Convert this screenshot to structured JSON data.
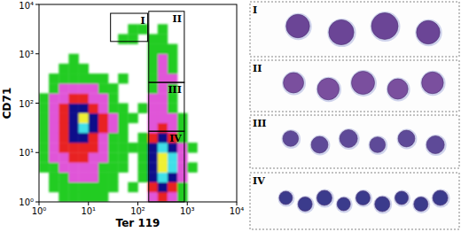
{
  "chart_data": {
    "type": "heatmap",
    "log": true,
    "xlabel": "Ter 119",
    "ylabel": "CD71",
    "xlim": [
      1,
      10000
    ],
    "ylim": [
      1,
      10000
    ],
    "xticks": [
      {
        "value": 1,
        "label": "10⁰"
      },
      {
        "value": 10,
        "label": "10¹"
      },
      {
        "value": 100,
        "label": "10²"
      },
      {
        "value": 1000,
        "label": "10³"
      },
      {
        "value": 10000,
        "label": "10⁴"
      }
    ],
    "yticks": [
      {
        "value": 1,
        "label": "10⁰"
      },
      {
        "value": 10,
        "label": "10¹"
      },
      {
        "value": 100,
        "label": "10²"
      },
      {
        "value": 1000,
        "label": "10³"
      },
      {
        "value": 10000,
        "label": "10⁴"
      }
    ],
    "colors": [
      "#22cc22",
      "#e055d8",
      "#e82020",
      "#10108a",
      "#40e0e8",
      "#f0f030"
    ],
    "x_bins": [
      1,
      1.585,
      2.512,
      3.981,
      6.31,
      10,
      15.85,
      25.12,
      39.81,
      63.1,
      100,
      158.5,
      251.2,
      398.1,
      631,
      1000,
      1585,
      2512,
      3981,
      6310,
      10000
    ],
    "y_bins": [
      1,
      1.585,
      2.512,
      3.981,
      6.31,
      10,
      15.85,
      25.12,
      39.81,
      63.1,
      100,
      158.5,
      251.2,
      398.1,
      631,
      1000,
      1585,
      2512,
      3981,
      6310,
      10000
    ],
    "cells": [
      [
        0,
        0,
        1,
        1,
        1,
        1,
        1,
        0,
        0,
        0,
        0,
        2,
        3,
        2,
        1,
        0,
        0,
        0,
        0,
        0
      ],
      [
        0,
        1,
        1,
        1,
        1,
        1,
        1,
        1,
        0,
        1,
        0,
        3,
        4,
        3,
        1,
        0,
        0,
        0,
        0,
        0
      ],
      [
        0,
        1,
        1,
        2,
        2,
        2,
        1,
        1,
        0,
        0,
        1,
        4,
        5,
        4,
        2,
        0,
        0,
        0,
        0,
        0
      ],
      [
        1,
        1,
        2,
        2,
        2,
        2,
        1,
        1,
        1,
        0,
        1,
        4,
        6,
        5,
        2,
        1,
        0,
        0,
        0,
        0
      ],
      [
        1,
        2,
        2,
        3,
        3,
        2,
        2,
        1,
        1,
        0,
        1,
        4,
        6,
        5,
        2,
        0,
        0,
        0,
        0,
        0
      ],
      [
        1,
        2,
        3,
        3,
        3,
        3,
        2,
        1,
        1,
        1,
        1,
        4,
        5,
        4,
        2,
        1,
        0,
        0,
        0,
        0
      ],
      [
        1,
        2,
        3,
        4,
        4,
        3,
        2,
        1,
        1,
        0,
        1,
        3,
        4,
        3,
        1,
        0,
        0,
        0,
        0,
        0
      ],
      [
        1,
        2,
        3,
        4,
        5,
        4,
        3,
        2,
        1,
        0,
        0,
        2,
        3,
        2,
        1,
        0,
        0,
        0,
        0,
        0
      ],
      [
        1,
        2,
        3,
        4,
        6,
        4,
        3,
        2,
        1,
        1,
        0,
        2,
        2,
        2,
        1,
        0,
        0,
        0,
        0,
        0
      ],
      [
        1,
        2,
        3,
        4,
        4,
        3,
        2,
        1,
        1,
        0,
        1,
        2,
        2,
        1,
        0,
        0,
        0,
        0,
        0,
        0
      ],
      [
        1,
        2,
        2,
        3,
        3,
        2,
        2,
        1,
        0,
        0,
        0,
        2,
        2,
        1,
        0,
        0,
        0,
        0,
        0,
        0
      ],
      [
        0,
        1,
        2,
        2,
        2,
        2,
        1,
        1,
        0,
        0,
        0,
        1,
        2,
        1,
        0,
        0,
        0,
        0,
        0,
        0
      ],
      [
        0,
        1,
        1,
        1,
        1,
        1,
        1,
        0,
        1,
        0,
        0,
        1,
        2,
        2,
        0,
        0,
        0,
        0,
        0,
        0
      ],
      [
        0,
        0,
        1,
        1,
        1,
        0,
        0,
        0,
        0,
        0,
        0,
        1,
        2,
        1,
        0,
        0,
        0,
        0,
        0,
        0
      ],
      [
        0,
        0,
        0,
        1,
        0,
        0,
        0,
        0,
        0,
        0,
        0,
        1,
        2,
        1,
        0,
        0,
        0,
        0,
        0,
        0
      ],
      [
        0,
        0,
        0,
        0,
        0,
        0,
        0,
        0,
        0,
        0,
        0,
        1,
        1,
        1,
        0,
        0,
        0,
        0,
        0,
        0
      ],
      [
        0,
        0,
        0,
        0,
        0,
        0,
        0,
        0,
        1,
        1,
        0,
        1,
        1,
        0,
        0,
        0,
        0,
        0,
        0,
        0
      ],
      [
        0,
        0,
        0,
        0,
        0,
        0,
        0,
        0,
        0,
        1,
        1,
        0,
        1,
        0,
        0,
        0,
        0,
        0,
        0,
        0
      ],
      [
        0,
        0,
        0,
        0,
        0,
        0,
        0,
        0,
        0,
        0,
        0,
        0,
        0,
        0,
        0,
        0,
        0,
        0,
        0,
        0
      ],
      [
        0,
        0,
        0,
        0,
        0,
        0,
        0,
        0,
        0,
        0,
        0,
        0,
        0,
        0,
        0,
        0,
        0,
        0,
        0,
        0
      ]
    ],
    "gates": [
      {
        "label": "I",
        "x": [
          28,
          158
        ],
        "y": [
          1778,
          6607
        ]
      },
      {
        "label": "II",
        "x": [
          166,
          871
        ],
        "y": [
          263,
          7244
        ]
      },
      {
        "label": "III",
        "x": [
          166,
          871
        ],
        "y": [
          27,
          263
        ]
      },
      {
        "label": "IV",
        "x": [
          166,
          871
        ],
        "y": [
          1,
          27
        ]
      }
    ]
  },
  "micrographs": [
    {
      "label": "I",
      "cells": 4
    },
    {
      "label": "II",
      "cells": 5
    },
    {
      "label": "III",
      "cells": 6
    },
    {
      "label": "IV",
      "cells": 9
    }
  ]
}
